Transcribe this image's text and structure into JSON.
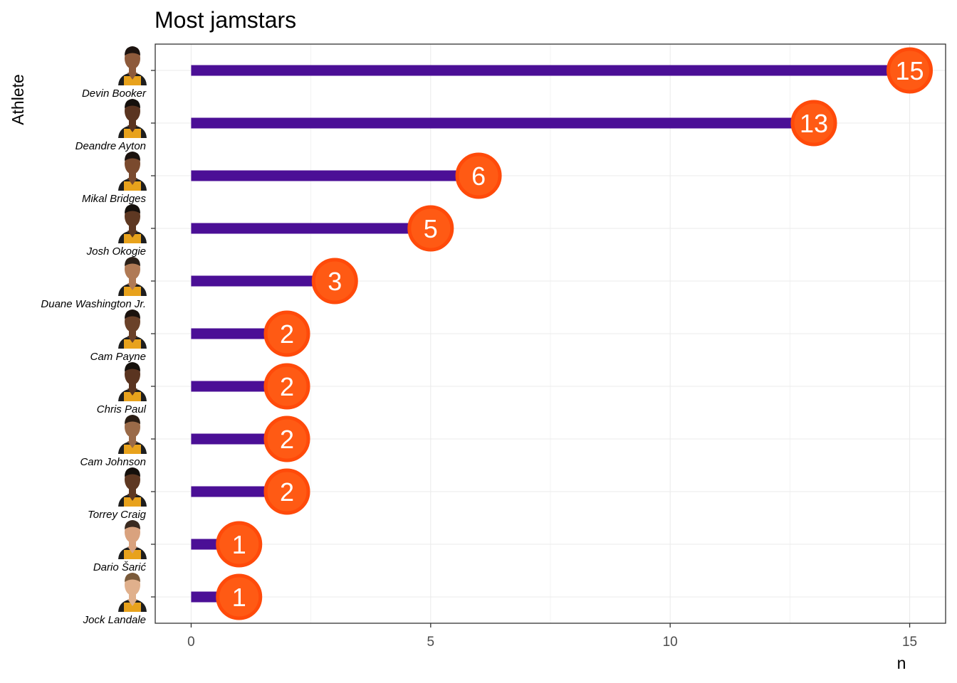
{
  "chart_data": {
    "type": "bar",
    "orientation": "horizontal",
    "style": "lollipop",
    "title": "Most jamstars",
    "xlabel": "n",
    "ylabel": "Athlete",
    "categories": [
      "Devin Booker",
      "Deandre Ayton",
      "Mikal Bridges",
      "Josh Okogie",
      "Duane Washington Jr.",
      "Cam Payne",
      "Chris Paul",
      "Cam Johnson",
      "Torrey Craig",
      "Dario Šarić",
      "Jock Landale"
    ],
    "values": [
      15,
      13,
      6,
      5,
      3,
      2,
      2,
      2,
      2,
      1,
      1
    ],
    "xlim": [
      -0.75,
      15.75
    ],
    "xticks": [
      0,
      5,
      10,
      15
    ],
    "grid": true,
    "legend": "none",
    "colors": {
      "bar": "#4b0f96",
      "point_ring": "#ff4a0a",
      "point_fill": "#ff5a14",
      "label": "#ffffff"
    }
  }
}
